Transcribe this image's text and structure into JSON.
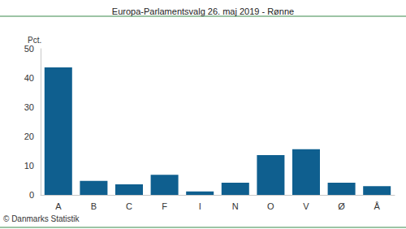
{
  "chart_data": {
    "type": "bar",
    "title": "Europa-Parlamentsvalg 26. maj 2019 - Rønne",
    "y_label": "Pct.",
    "source": "© Danmarks Statistik",
    "categories": [
      "A",
      "B",
      "C",
      "F",
      "I",
      "N",
      "O",
      "V",
      "Ø",
      "Å"
    ],
    "values": [
      43.6,
      4.8,
      3.6,
      6.9,
      1.2,
      4.2,
      13.6,
      15.6,
      4.2,
      3.0
    ],
    "color": "#0f5f8f",
    "ylim": [
      0,
      50
    ],
    "yticks": [
      0,
      10,
      20,
      30,
      40,
      50
    ],
    "grid": false
  }
}
